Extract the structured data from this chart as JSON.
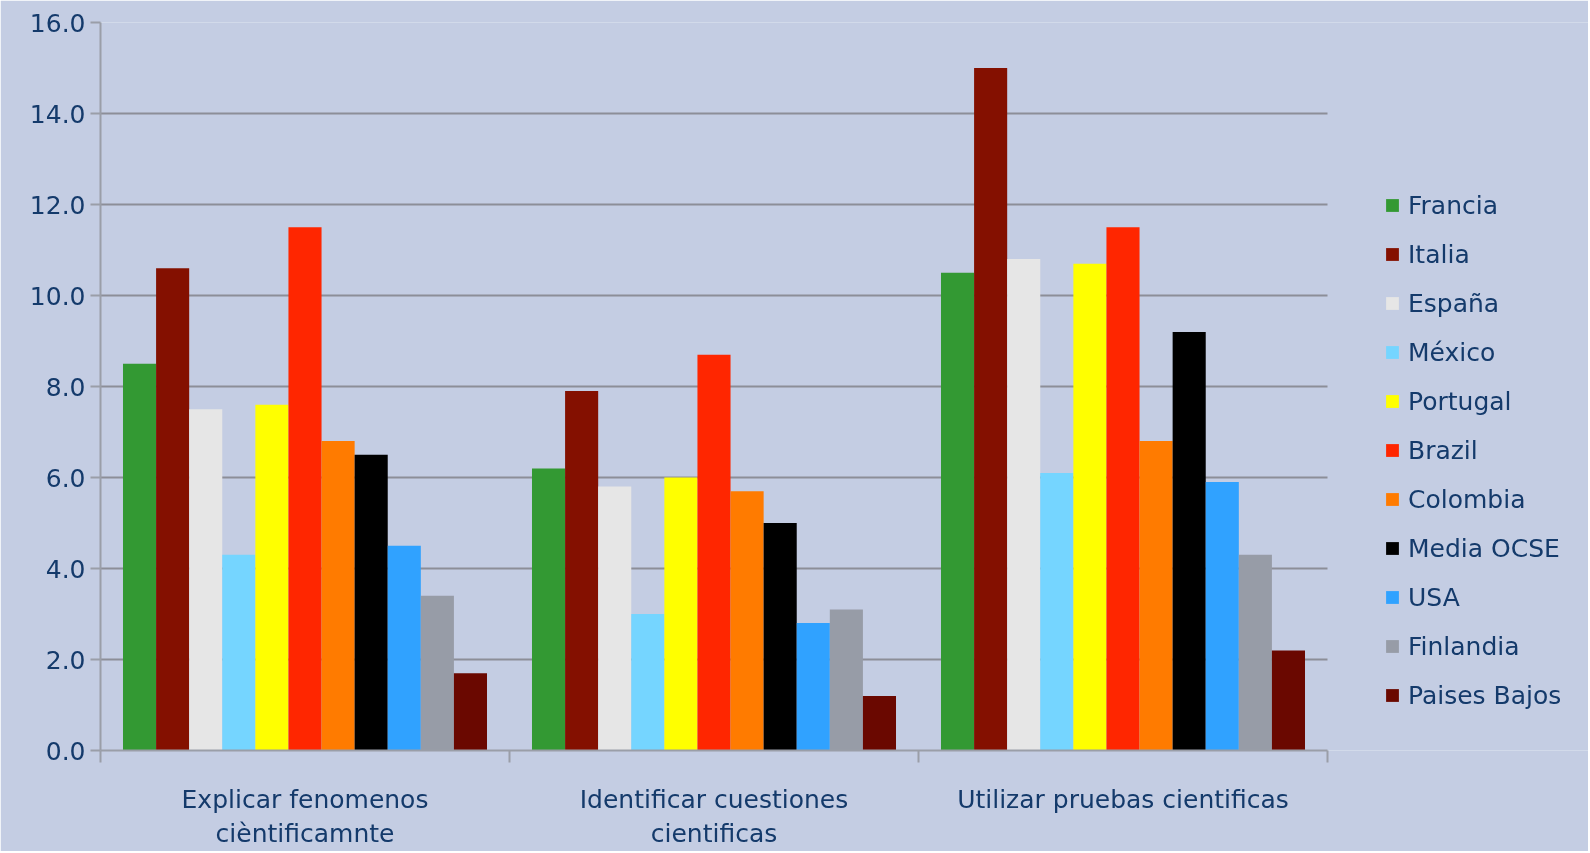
{
  "chart_data": {
    "type": "bar",
    "categories": [
      "Explicar fenomenos cièntificamnte",
      "Identificar cuestiones cientificas",
      "Utilizar pruebas cientificas"
    ],
    "series": [
      {
        "name": "Francia",
        "color": "#339933",
        "values": [
          8.5,
          6.2,
          10.5
        ]
      },
      {
        "name": "Italia",
        "color": "#841000",
        "values": [
          10.6,
          7.9,
          15.0
        ]
      },
      {
        "name": "España",
        "color": "#e6e6e6",
        "values": [
          7.5,
          5.8,
          10.8
        ]
      },
      {
        "name": "México",
        "color": "#75d5ff",
        "values": [
          4.3,
          3.0,
          6.1
        ]
      },
      {
        "name": "Portugal",
        "color": "#ffff00",
        "values": [
          7.6,
          6.0,
          10.7
        ]
      },
      {
        "name": "Brazil",
        "color": "#ff2600",
        "values": [
          11.5,
          8.7,
          11.5
        ]
      },
      {
        "name": "Colombia",
        "color": "#ff7b00",
        "values": [
          6.8,
          5.7,
          6.8
        ]
      },
      {
        "name": "Media OCSE",
        "color": "#000000",
        "values": [
          6.5,
          5.0,
          9.2
        ]
      },
      {
        "name": "USA",
        "color": "#30a2ff",
        "values": [
          4.5,
          2.8,
          5.9
        ]
      },
      {
        "name": "Finlandia",
        "color": "#979ca7",
        "values": [
          3.4,
          3.1,
          4.3
        ]
      },
      {
        "name": "Paises Bajos",
        "color": "#6a0800",
        "values": [
          1.7,
          1.2,
          2.2
        ]
      }
    ],
    "ylim": [
      0,
      16
    ],
    "yticks": [
      {
        "value": 0,
        "label": "0.0"
      },
      {
        "value": 2,
        "label": "2.0"
      },
      {
        "value": 4,
        "label": "4.0"
      },
      {
        "value": 6,
        "label": "6.0"
      },
      {
        "value": 8,
        "label": "8.0"
      },
      {
        "value": 10,
        "label": "10.0"
      },
      {
        "value": 12,
        "label": "12.0"
      },
      {
        "value": 14,
        "label": "14.0"
      },
      {
        "value": 16,
        "label": "16.0"
      }
    ],
    "grid": "y",
    "legend": "right"
  }
}
